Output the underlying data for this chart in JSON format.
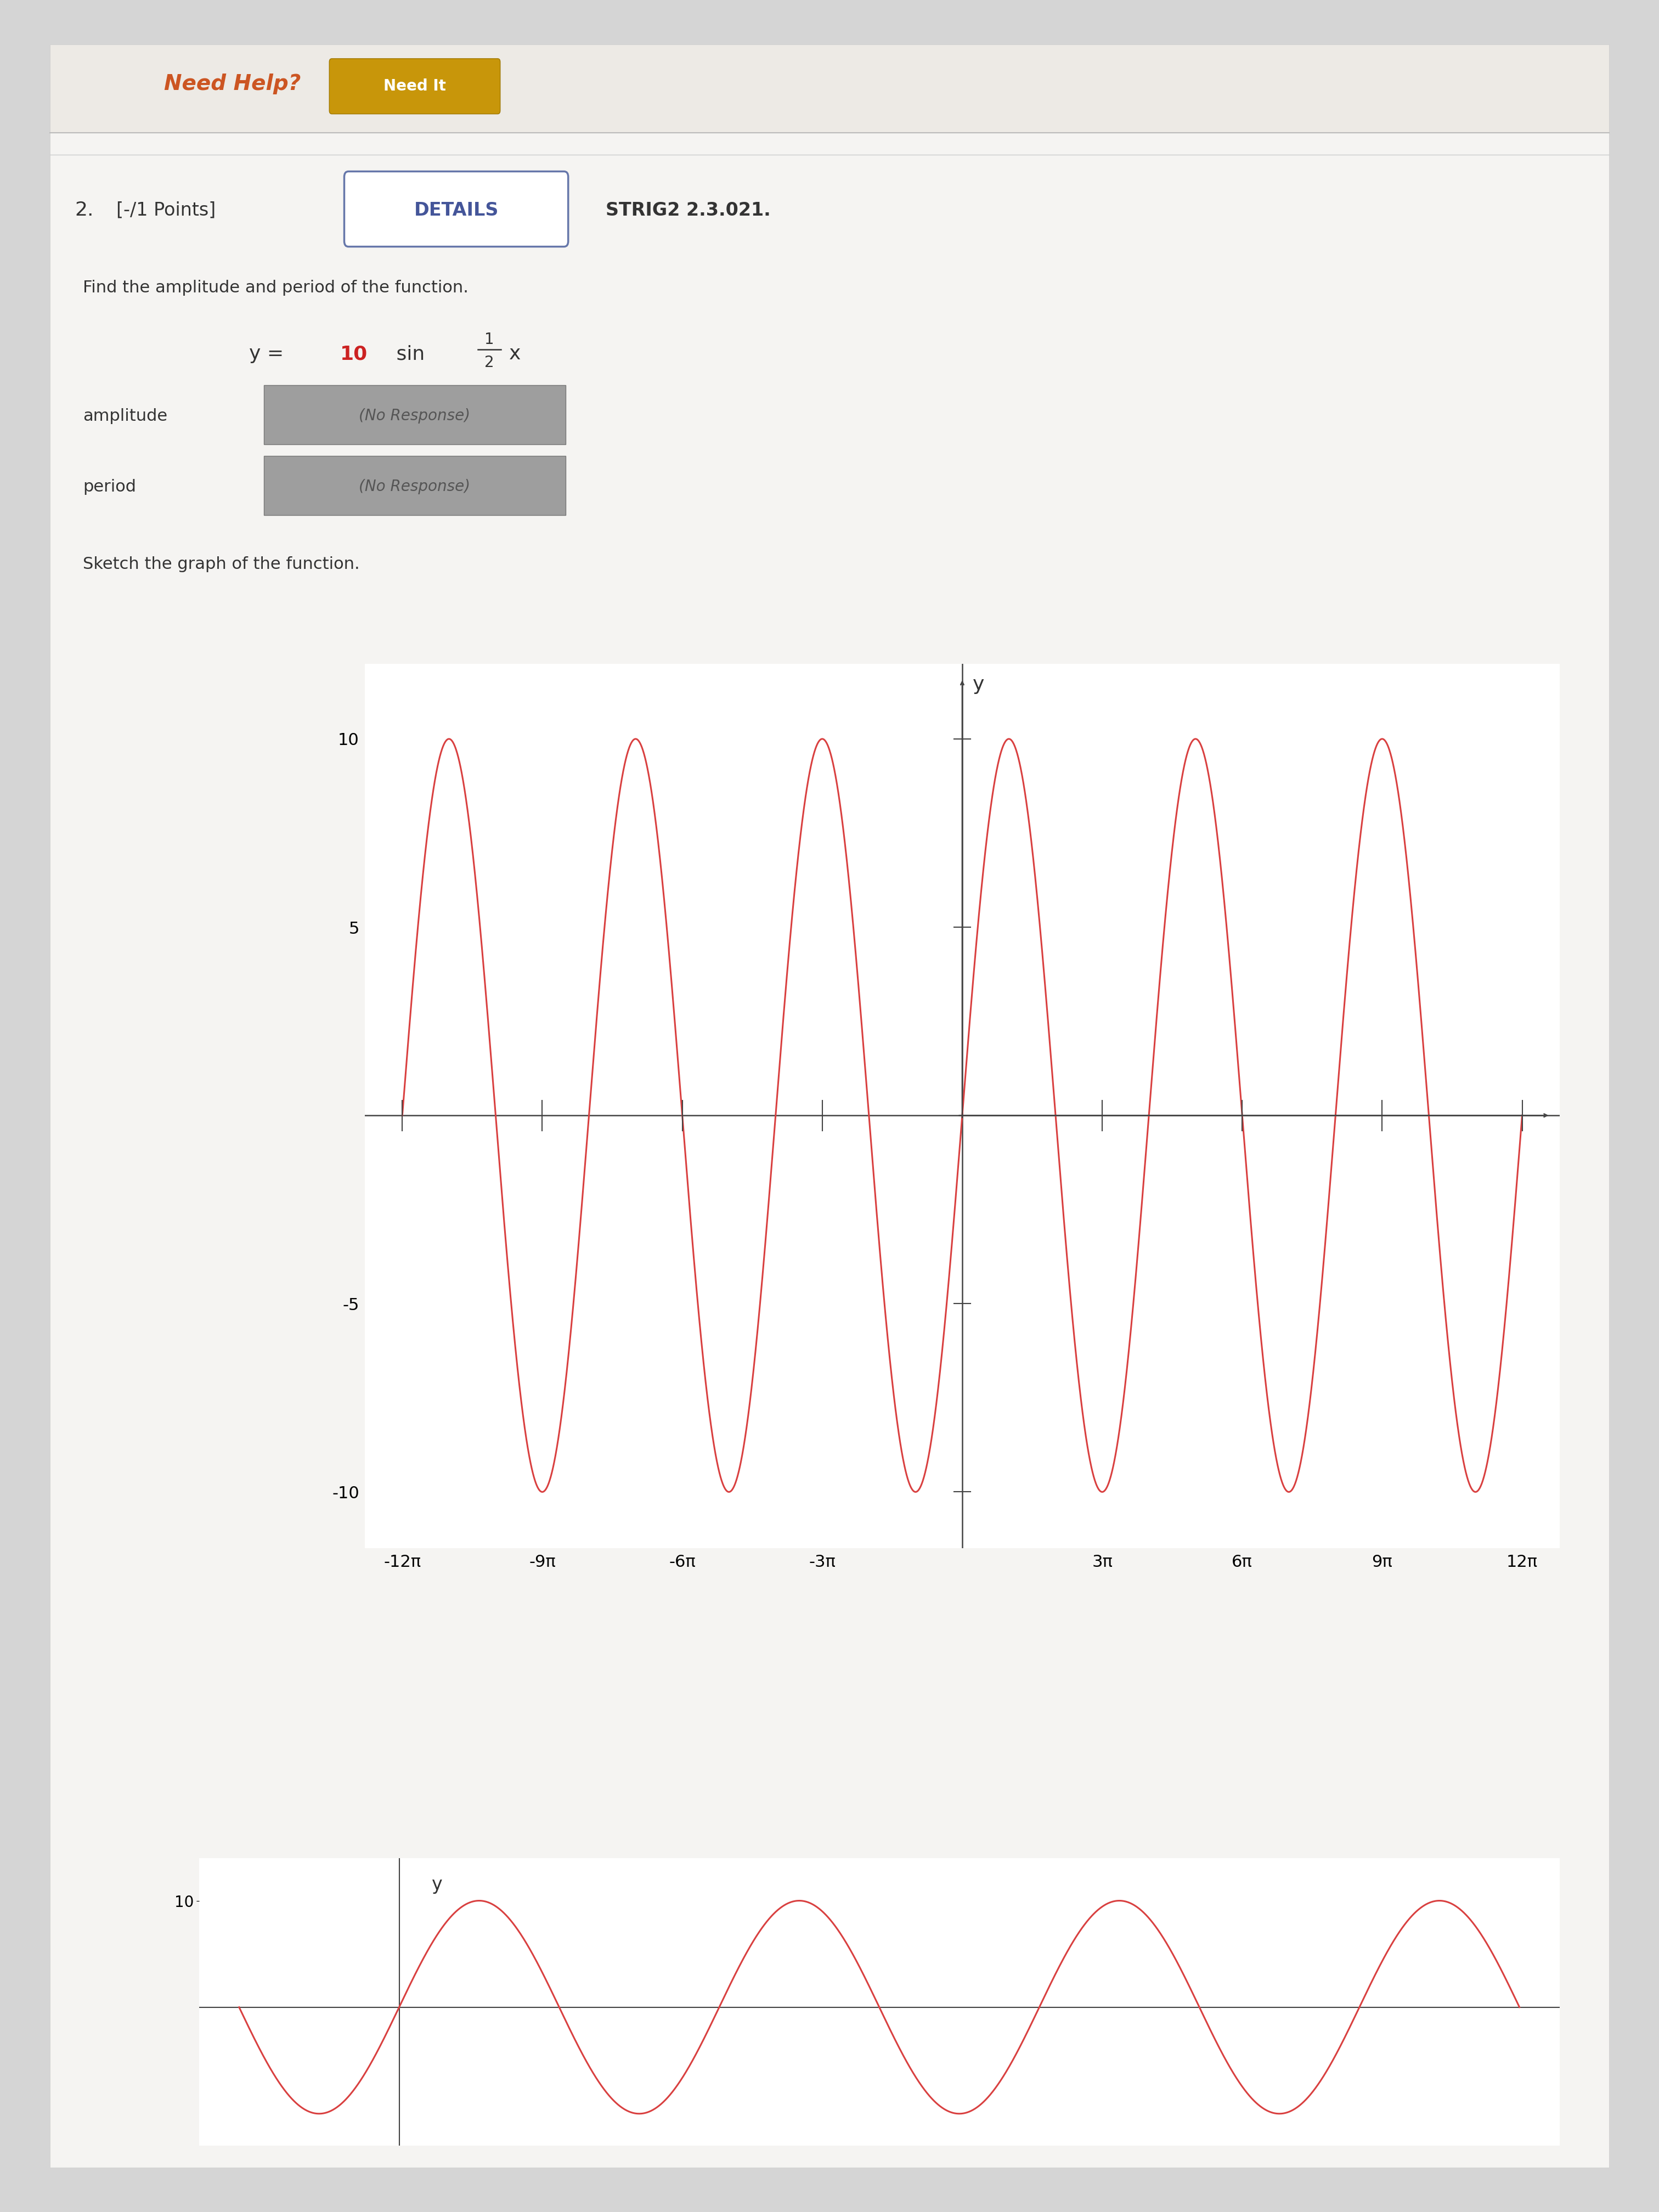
{
  "page_bg": "#d5d5d5",
  "content_bg": "#f2f2f2",
  "top_bg": "#e8e5e0",
  "title_text": "2.  [-/1 Points]",
  "details_text": "DETAILS",
  "strig_text": "STRIG2 2.3.021.",
  "problem_text": "Find the amplitude and period of the function.",
  "amplitude_label": "amplitude",
  "period_label": "period",
  "response_box_text": "(No Response)",
  "sketch_text": "Sketch the graph of the function.",
  "need_help_text": "Need Help?",
  "need_it_text": "Need It",
  "amplitude": 10,
  "b_coeff": 0.5,
  "x_min": -12,
  "x_max": 12,
  "y_min": -10,
  "y_max": 10,
  "x_ticks_pi": [
    -12,
    -9,
    -6,
    -3,
    3,
    6,
    9,
    12
  ],
  "x_tick_labels": [
    "-12π",
    "-9π",
    "-6π",
    "-3π",
    "3π",
    "6π",
    "9π",
    "12π"
  ],
  "y_ticks": [
    -10,
    -5,
    5,
    10
  ],
  "curve_color": "#d94040",
  "axis_color": "#444444",
  "text_color": "#333333",
  "response_bg": "#9e9e9e",
  "details_border_color": "#6677aa",
  "details_text_color": "#445599",
  "number_red": "#cc2222"
}
